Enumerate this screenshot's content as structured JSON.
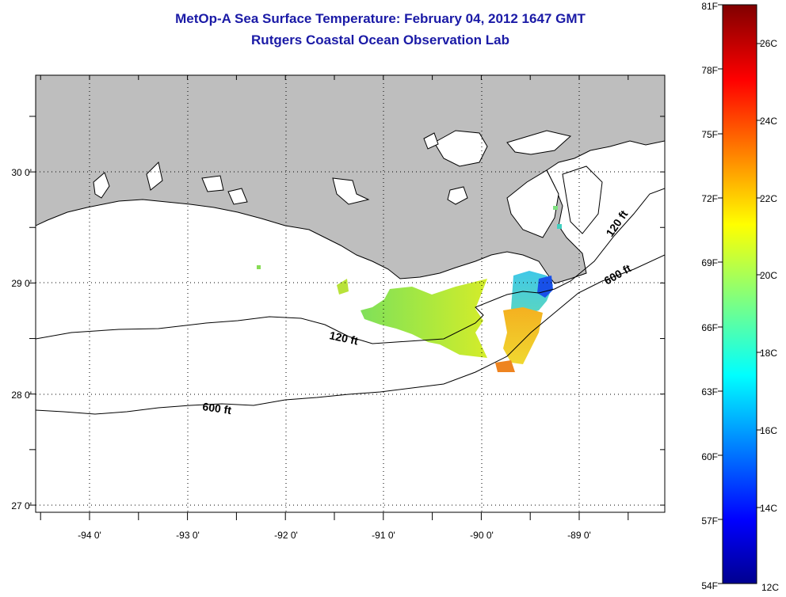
{
  "title": "MetOp-A Sea Surface Temperature:  February 04, 2012 1647 GMT",
  "subtitle": "Rutgers Coastal Ocean Observation Lab",
  "map": {
    "lon_ticks": [
      "-94 0'",
      "-93 0'",
      "-92 0'",
      "-91 0'",
      "-90 0'",
      "-89 0'"
    ],
    "lat_ticks": [
      "30 0'",
      "29 0'",
      "28 0'",
      "27 0'"
    ],
    "contour_labels": [
      {
        "text": "120 ft",
        "id": "contour-120-west"
      },
      {
        "text": "120 ft",
        "id": "contour-120-east"
      },
      {
        "text": "600 ft",
        "id": "contour-600-west"
      },
      {
        "text": "600 ft",
        "id": "contour-600-east"
      }
    ],
    "colors": {
      "land": "#bebebe",
      "water": "#ffffff",
      "grid": "#000000"
    }
  },
  "colorbar": {
    "fahrenheit_labels": [
      "81F",
      "78F",
      "75F",
      "72F",
      "69F",
      "66F",
      "63F",
      "60F",
      "57F",
      "54F"
    ],
    "celsius_labels": [
      "26C",
      "24C",
      "22C",
      "20C",
      "18C",
      "16C",
      "14C",
      "12C"
    ],
    "range_f": [
      54,
      81
    ],
    "range_c": [
      12,
      27
    ],
    "colormap": "jet"
  }
}
